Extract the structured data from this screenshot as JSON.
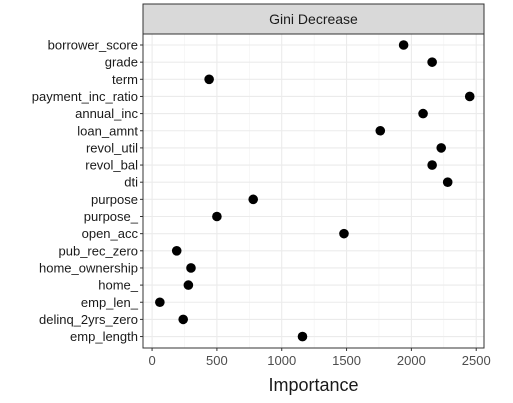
{
  "chart_data": {
    "type": "scatter",
    "title": "",
    "panel_label": "Gini Decrease",
    "xlabel": "Importance",
    "ylabel": "",
    "xlim": [
      -70,
      2560
    ],
    "x_ticks": [
      0,
      500,
      1000,
      1500,
      2000,
      2500
    ],
    "grid": true,
    "categories": [
      "borrower_score",
      "grade",
      "term",
      "payment_inc_ratio",
      "annual_inc",
      "loan_amnt",
      "revol_util",
      "revol_bal",
      "dti",
      "purpose",
      "purpose_",
      "open_acc",
      "pub_rec_zero",
      "home_ownership",
      "home_",
      "emp_len_",
      "delinq_2yrs_zero",
      "emp_length"
    ],
    "values": [
      1940,
      2160,
      440,
      2450,
      2090,
      1760,
      2230,
      2160,
      2280,
      780,
      500,
      1480,
      190,
      300,
      280,
      60,
      240,
      1160
    ],
    "point_color": "#000000"
  }
}
